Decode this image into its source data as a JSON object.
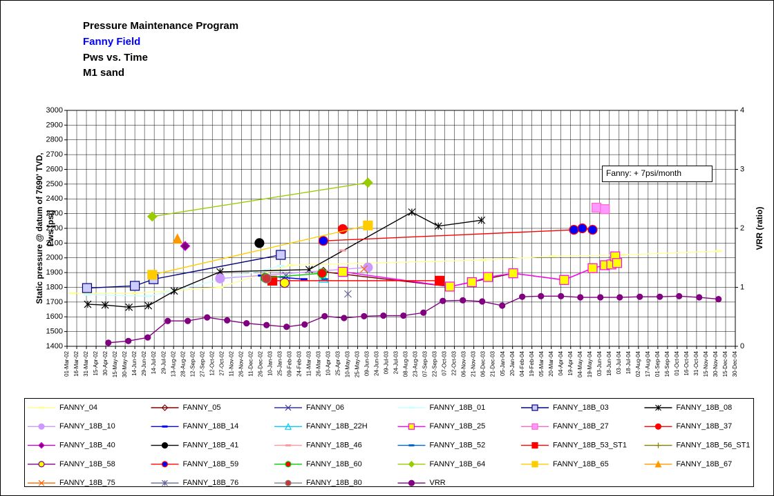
{
  "chart_data": {
    "type": "line",
    "title": "Pressure Maintenance Program",
    "subtitle": "Fanny Field",
    "subtitle2": "Pws vs. Time",
    "subtitle3": "M1 sand",
    "ylabel": [
      "Static pressure @ datum of 7690' TVD,",
      "Pws [psi]"
    ],
    "y2label": "VRR (ratio)",
    "annotation": "Fanny: + 7psi/month",
    "grid": true,
    "xlim": [
      "2002-03-01",
      "2004-12-30"
    ],
    "xticks": [
      {
        "value": "2002-03-01",
        "label": "01-Mar-02"
      },
      {
        "value": "2002-03-16",
        "label": "16-Mar-02"
      },
      {
        "value": "2002-03-31",
        "label": "31-Mar-02"
      },
      {
        "value": "2002-04-15",
        "label": "15-Apr-02"
      },
      {
        "value": "2002-04-30",
        "label": "30-Apr-02"
      },
      {
        "value": "2002-05-15",
        "label": "15-May-02"
      },
      {
        "value": "2002-05-30",
        "label": "30-May-02"
      },
      {
        "value": "2002-06-14",
        "label": "14-Jun-02"
      },
      {
        "value": "2002-06-29",
        "label": "29-Jun-02"
      },
      {
        "value": "2002-07-14",
        "label": "14-Jul-02"
      },
      {
        "value": "2002-07-29",
        "label": "29-Jul-02"
      },
      {
        "value": "2002-08-13",
        "label": "13-Aug-02"
      },
      {
        "value": "2002-08-28",
        "label": "28-Aug-02"
      },
      {
        "value": "2002-09-12",
        "label": "12-Sep-02"
      },
      {
        "value": "2002-09-27",
        "label": "27-Sep-02"
      },
      {
        "value": "2002-10-12",
        "label": "12-Oct-02"
      },
      {
        "value": "2002-10-27",
        "label": "27-Oct-02"
      },
      {
        "value": "2002-11-11",
        "label": "11-Nov-02"
      },
      {
        "value": "2002-11-26",
        "label": "26-Nov-02"
      },
      {
        "value": "2002-12-11",
        "label": "11-Dec-02"
      },
      {
        "value": "2002-12-26",
        "label": "26-Dec-02"
      },
      {
        "value": "2003-01-10",
        "label": "10-Jan-03"
      },
      {
        "value": "2003-01-25",
        "label": "25-Jan-03"
      },
      {
        "value": "2003-02-09",
        "label": "09-Feb-03"
      },
      {
        "value": "2003-02-24",
        "label": "24-Feb-03"
      },
      {
        "value": "2003-03-11",
        "label": "11-Mar-03"
      },
      {
        "value": "2003-03-26",
        "label": "26-Mar-03"
      },
      {
        "value": "2003-04-10",
        "label": "10-Apr-03"
      },
      {
        "value": "2003-04-25",
        "label": "25-Apr-03"
      },
      {
        "value": "2003-05-10",
        "label": "10-May-03"
      },
      {
        "value": "2003-05-25",
        "label": "25-May-03"
      },
      {
        "value": "2003-06-09",
        "label": "09-Jun-03"
      },
      {
        "value": "2003-06-24",
        "label": "24-Jun-03"
      },
      {
        "value": "2003-07-09",
        "label": "09-Jul-03"
      },
      {
        "value": "2003-07-24",
        "label": "24-Jul-03"
      },
      {
        "value": "2003-08-08",
        "label": "08-Aug-03"
      },
      {
        "value": "2003-08-23",
        "label": "23-Aug-03"
      },
      {
        "value": "2003-09-07",
        "label": "07-Sep-03"
      },
      {
        "value": "2003-09-22",
        "label": "22-Sep-03"
      },
      {
        "value": "2003-10-07",
        "label": "07-Oct-03"
      },
      {
        "value": "2003-10-22",
        "label": "22-Oct-03"
      },
      {
        "value": "2003-11-06",
        "label": "06-Nov-03"
      },
      {
        "value": "2003-11-21",
        "label": "21-Nov-03"
      },
      {
        "value": "2003-12-06",
        "label": "06-Dec-03"
      },
      {
        "value": "2003-12-21",
        "label": "21-Dec-03"
      },
      {
        "value": "2004-01-05",
        "label": "05-Jan-04"
      },
      {
        "value": "2004-01-20",
        "label": "20-Jan-04"
      },
      {
        "value": "2004-02-04",
        "label": "04-Feb-04"
      },
      {
        "value": "2004-02-19",
        "label": "19-Feb-04"
      },
      {
        "value": "2004-03-05",
        "label": "05-Mar-04"
      },
      {
        "value": "2004-03-20",
        "label": "20-Mar-04"
      },
      {
        "value": "2004-04-04",
        "label": "04-Apr-04"
      },
      {
        "value": "2004-04-19",
        "label": "19-Apr-04"
      },
      {
        "value": "2004-05-04",
        "label": "04-May-04"
      },
      {
        "value": "2004-05-19",
        "label": "19-May-04"
      },
      {
        "value": "2004-06-03",
        "label": "03-Jun-04"
      },
      {
        "value": "2004-06-18",
        "label": "18-Jun-04"
      },
      {
        "value": "2004-07-03",
        "label": "03-Jul-04"
      },
      {
        "value": "2004-07-18",
        "label": "18-Jul-04"
      },
      {
        "value": "2004-08-02",
        "label": "02-Aug-04"
      },
      {
        "value": "2004-08-17",
        "label": "17-Aug-04"
      },
      {
        "value": "2004-09-01",
        "label": "01-Sep-04"
      },
      {
        "value": "2004-09-16",
        "label": "16-Sep-04"
      },
      {
        "value": "2004-10-01",
        "label": "01-Oct-04"
      },
      {
        "value": "2004-10-16",
        "label": "16-Oct-04"
      },
      {
        "value": "2004-10-31",
        "label": "31-Oct-04"
      },
      {
        "value": "2004-11-15",
        "label": "15-Nov-04"
      },
      {
        "value": "2004-11-30",
        "label": "30-Nov-04"
      },
      {
        "value": "2004-12-15",
        "label": "15-Dec-04"
      },
      {
        "value": "2004-12-30",
        "label": "30-Dec-04"
      }
    ],
    "ylim": [
      1400,
      3000
    ],
    "yticks": [
      1400,
      1500,
      1600,
      1700,
      1800,
      1900,
      2000,
      2100,
      2200,
      2300,
      2400,
      2500,
      2600,
      2700,
      2800,
      2900,
      3000
    ],
    "y2lim": [
      0,
      4
    ],
    "y2ticks": [
      0,
      1,
      2,
      3,
      4
    ],
    "series": [
      {
        "name": "FANNY_04",
        "color": "#ffff99",
        "marker": "dash",
        "x": [
          "2002-03-10",
          "2002-06-14",
          "2002-10-24",
          "2003-02-10",
          "2003-12-06",
          "2004-03-22",
          "2004-07-08",
          "2004-12-04"
        ],
        "values": [
          1760,
          1760,
          1800,
          1950,
          1985,
          2010,
          2020,
          2045
        ]
      },
      {
        "name": "FANNY_05",
        "color": "#800000",
        "marker": "diamond",
        "x": [
          "2003-04-02",
          "2003-10-15",
          "2004-01-21",
          "2004-04-09",
          "2004-05-23"
        ],
        "values": [
          1905,
          1805,
          1895,
          1850,
          1930
        ]
      },
      {
        "name": "FANNY_06",
        "color": "#333399",
        "marker": "x",
        "x": [
          "2003-02-03"
        ],
        "values": [
          1880
        ]
      },
      {
        "name": "FANNY_18B_01",
        "color": "#ccffff",
        "marker": "dash",
        "x": [
          "2002-04-01",
          "2002-07-05",
          "2003-01-26"
        ],
        "values": [
          1750,
          1740,
          1945
        ]
      },
      {
        "name": "FANNY_18B_03",
        "color": "#000080",
        "marker": "square",
        "fill": "#ccccff",
        "x": [
          "2002-04-01",
          "2002-06-14",
          "2002-07-13",
          "2003-01-26"
        ],
        "values": [
          1795,
          1810,
          1855,
          2020
        ]
      },
      {
        "name": "FANNY_18B_08",
        "color": "#000000",
        "marker": "star",
        "x": [
          "2002-04-02",
          "2002-04-29",
          "2002-06-05",
          "2002-07-05",
          "2002-08-14",
          "2002-10-24",
          "2003-03-11",
          "2003-08-17",
          "2003-09-27",
          "2003-12-03"
        ],
        "values": [
          1685,
          1680,
          1665,
          1675,
          1775,
          1905,
          1920,
          2310,
          2215,
          2255
        ]
      },
      {
        "name": "FANNY_18B_10",
        "color": "#cc99ff",
        "marker": "circle",
        "fill": "#cc99ff",
        "x": [
          "2002-10-24",
          "2003-06-10"
        ],
        "values": [
          1860,
          1935
        ]
      },
      {
        "name": "FANNY_18B_14",
        "color": "#0000ff",
        "marker": "dash",
        "x": [
          "2002-12-27",
          "2003-03-03"
        ],
        "values": [
          1880,
          1855
        ]
      },
      {
        "name": "FANNY_18B_22H",
        "color": "#00ccff",
        "marker": "triangle",
        "x": [
          "2003-04-02"
        ],
        "values": [
          1865
        ]
      },
      {
        "name": "FANNY_18B_25",
        "color": "#ff00ff",
        "marker": "square",
        "fill": "#ffff00",
        "x": [
          "2003-05-02",
          "2003-10-15",
          "2003-11-18",
          "2003-12-13",
          "2004-01-21",
          "2004-04-09",
          "2004-05-23",
          "2004-06-11",
          "2004-06-21",
          "2004-06-27",
          "2004-06-30"
        ],
        "values": [
          1905,
          1805,
          1835,
          1870,
          1895,
          1850,
          1930,
          1950,
          1955,
          2010,
          1965
        ]
      },
      {
        "name": "FANNY_18B_27",
        "color": "#ff66cc",
        "marker": "square",
        "fill": "#ff99ff",
        "x": [
          "2004-05-29",
          "2004-06-11"
        ],
        "values": [
          2340,
          2330
        ]
      },
      {
        "name": "FANNY_18B_37",
        "color": "#ff0000",
        "marker": "circle",
        "fill": "#ff0000",
        "x": [
          "2003-05-02"
        ],
        "values": [
          2195
        ]
      },
      {
        "name": "FANNY_18B_40",
        "color": "#cc00cc",
        "marker": "diamond",
        "fill": "#800080",
        "x": [
          "2002-08-31"
        ],
        "values": [
          2080
        ]
      },
      {
        "name": "FANNY_18B_41",
        "color": "#000000",
        "marker": "circle",
        "fill": "#000000",
        "x": [
          "2002-12-24"
        ],
        "values": [
          2100
        ]
      },
      {
        "name": "FANNY_18B_46",
        "color": "#ff9999",
        "marker": "dash",
        "x": [
          "2003-05-02"
        ],
        "values": [
          2050
        ]
      },
      {
        "name": "FANNY_18B_52",
        "color": "#0066cc",
        "marker": "dash",
        "x": [
          "2003-04-04"
        ],
        "values": [
          1855
        ]
      },
      {
        "name": "FANNY_18B_53_ST1",
        "color": "#ff0000",
        "marker": "square",
        "fill": "#ff0000",
        "x": [
          "2003-01-13",
          "2003-09-29"
        ],
        "values": [
          1845,
          1845
        ]
      },
      {
        "name": "FANNY_18B_56_ST1",
        "color": "#808000",
        "marker": "plus",
        "x": [],
        "values": []
      },
      {
        "name": "FANNY_18B_58",
        "color": "#800080",
        "marker": "circle",
        "fill": "#ffff00",
        "x": [
          "2003-02-01"
        ],
        "values": [
          1830
        ]
      },
      {
        "name": "FANNY_18B_59",
        "color": "#ff0000",
        "marker": "circle",
        "fill": "#0000ff",
        "x": [
          "2003-04-02",
          "2004-04-24",
          "2004-05-07",
          "2004-05-23"
        ],
        "values": [
          2115,
          2190,
          2200,
          2190
        ]
      },
      {
        "name": "FANNY_18B_60",
        "color": "#00cc00",
        "marker": "circle",
        "fill": "#ff0000",
        "x": [
          "2003-01-02",
          "2003-03-31"
        ],
        "values": [
          1865,
          1895
        ]
      },
      {
        "name": "FANNY_18B_64",
        "color": "#99cc00",
        "marker": "diamond",
        "fill": "#99cc00",
        "x": [
          "2002-07-11",
          "2003-06-10"
        ],
        "values": [
          2280,
          2510
        ]
      },
      {
        "name": "FANNY_18B_65",
        "color": "#ffcc00",
        "marker": "square",
        "fill": "#ffcc00",
        "x": [
          "2002-07-11",
          "2003-06-10"
        ],
        "values": [
          1885,
          2220
        ]
      },
      {
        "name": "FANNY_18B_67",
        "color": "#ff9900",
        "marker": "triangle",
        "fill": "#ff9900",
        "x": [
          "2002-08-19"
        ],
        "values": [
          2130
        ]
      },
      {
        "name": "FANNY_18B_75",
        "color": "#ff6600",
        "marker": "x",
        "x": [
          "2003-06-04"
        ],
        "values": [
          1925
        ]
      },
      {
        "name": "FANNY_18B_76",
        "color": "#666699",
        "marker": "star",
        "x": [
          "2003-05-10"
        ],
        "values": [
          1755
        ]
      },
      {
        "name": "FANNY_18B_80",
        "color": "#808080",
        "marker": "circle",
        "fill": "#cc3333",
        "x": [
          "2003-01-04"
        ],
        "values": [
          1860
        ]
      },
      {
        "name": "VRR",
        "color": "#800080",
        "marker": "circle",
        "fill": "#800080",
        "axis": "y2",
        "x": [
          "2002-05-04",
          "2002-06-04",
          "2002-07-04",
          "2002-08-04",
          "2002-09-04",
          "2002-10-04",
          "2002-11-04",
          "2002-12-04",
          "2003-01-04",
          "2003-02-04",
          "2003-03-04",
          "2003-04-04",
          "2003-05-04",
          "2003-06-04",
          "2003-07-04",
          "2003-08-04",
          "2003-09-04",
          "2003-10-04",
          "2003-11-04",
          "2003-12-04",
          "2004-01-04",
          "2004-02-04",
          "2004-03-04",
          "2004-04-04",
          "2004-05-04",
          "2004-06-04",
          "2004-07-04",
          "2004-08-04",
          "2004-09-04",
          "2004-10-04",
          "2004-11-04",
          "2004-12-04"
        ],
        "values": [
          0.06,
          0.09,
          0.15,
          0.43,
          0.43,
          0.49,
          0.44,
          0.39,
          0.36,
          0.33,
          0.37,
          0.51,
          0.48,
          0.51,
          0.52,
          0.52,
          0.57,
          0.77,
          0.78,
          0.76,
          0.69,
          0.84,
          0.85,
          0.85,
          0.83,
          0.83,
          0.83,
          0.84,
          0.84,
          0.85,
          0.83,
          0.8
        ]
      }
    ]
  }
}
